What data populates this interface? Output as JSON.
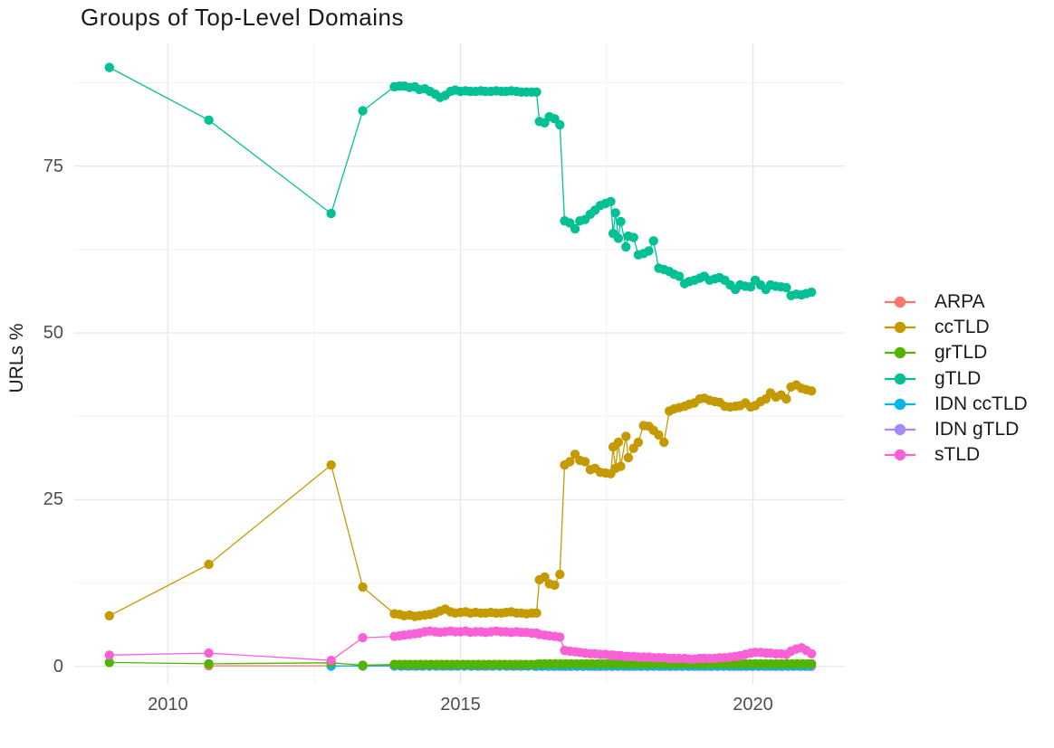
{
  "chart_data": {
    "type": "line",
    "title": "Groups of Top-Level Domains",
    "xlabel": "",
    "ylabel": "URLs %",
    "x_ticks": [
      2010,
      2015,
      2020
    ],
    "x_minor_gridlines": [
      2012.5,
      2017.5
    ],
    "y_ticks": [
      0,
      25,
      50,
      75
    ],
    "y_minor_gridlines": [
      12.5,
      37.5,
      62.5,
      87.5
    ],
    "xlim": [
      2008.4,
      2021.57
    ],
    "ylim": [
      -2.6,
      93.4
    ],
    "grid": true,
    "legend_position": "right",
    "marker": "point",
    "draw_order": [
      "ARPA",
      "IDN gTLD",
      "IDN ccTLD",
      "ccTLD",
      "gTLD",
      "grTLD",
      "sTLD"
    ],
    "series": [
      {
        "name": "ARPA",
        "color": "#F8766D",
        "points": [
          [
            2010.7,
            0.1
          ],
          [
            2012.79,
            0.1
          ],
          [
            2013.33,
            0.05
          ]
        ],
        "flat_runs": [
          {
            "from": 2013.87,
            "to": 2021.0,
            "step": 0.12,
            "value": 0.05
          }
        ]
      },
      {
        "name": "ccTLD",
        "color": "#C49A00",
        "points": [
          [
            2009.0,
            7.6
          ],
          [
            2010.7,
            15.3
          ],
          [
            2012.79,
            30.2
          ],
          [
            2013.33,
            11.9
          ],
          [
            2013.87,
            7.9
          ],
          [
            2013.96,
            7.8
          ],
          [
            2014.04,
            7.6
          ],
          [
            2014.13,
            7.7
          ],
          [
            2014.22,
            7.5
          ],
          [
            2014.3,
            7.6
          ],
          [
            2014.39,
            7.7
          ],
          [
            2014.48,
            7.8
          ],
          [
            2014.57,
            8.0
          ],
          [
            2014.65,
            8.3
          ],
          [
            2014.74,
            8.6
          ],
          [
            2014.83,
            8.2
          ],
          [
            2014.91,
            8.0
          ],
          [
            2015.0,
            8.1
          ],
          [
            2015.09,
            8.2
          ],
          [
            2015.17,
            8.0
          ],
          [
            2015.26,
            8.1
          ],
          [
            2015.35,
            8.0
          ],
          [
            2015.43,
            8.0
          ],
          [
            2015.52,
            8.1
          ],
          [
            2015.61,
            8.0
          ],
          [
            2015.7,
            8.0
          ],
          [
            2015.78,
            8.1
          ],
          [
            2015.87,
            8.2
          ],
          [
            2015.96,
            8.0
          ],
          [
            2016.04,
            8.0
          ],
          [
            2016.13,
            7.9
          ],
          [
            2016.22,
            8.0
          ],
          [
            2016.3,
            8.0
          ],
          [
            2016.35,
            13.0
          ],
          [
            2016.44,
            13.4
          ],
          [
            2016.52,
            12.4
          ],
          [
            2016.61,
            12.2
          ],
          [
            2016.7,
            13.8
          ],
          [
            2016.78,
            30.2
          ],
          [
            2016.87,
            30.7
          ],
          [
            2016.96,
            31.8
          ],
          [
            2017.04,
            30.9
          ],
          [
            2017.13,
            30.7
          ],
          [
            2017.22,
            29.5
          ],
          [
            2017.3,
            29.7
          ],
          [
            2017.39,
            29.1
          ],
          [
            2017.48,
            29.0
          ],
          [
            2017.57,
            28.9
          ],
          [
            2017.61,
            32.9
          ],
          [
            2017.65,
            29.7
          ],
          [
            2017.7,
            33.6
          ],
          [
            2017.74,
            30.0
          ],
          [
            2017.83,
            34.5
          ],
          [
            2017.87,
            31.3
          ],
          [
            2017.96,
            32.7
          ],
          [
            2018.04,
            33.6
          ],
          [
            2018.13,
            36.1
          ],
          [
            2018.22,
            36.0
          ],
          [
            2018.3,
            35.4
          ],
          [
            2018.39,
            34.7
          ],
          [
            2018.48,
            33.6
          ],
          [
            2018.57,
            38.3
          ],
          [
            2018.65,
            38.6
          ],
          [
            2018.74,
            38.8
          ],
          [
            2018.83,
            39.0
          ],
          [
            2018.91,
            39.3
          ],
          [
            2019.0,
            39.5
          ],
          [
            2019.09,
            40.1
          ],
          [
            2019.17,
            40.2
          ],
          [
            2019.26,
            39.9
          ],
          [
            2019.35,
            39.7
          ],
          [
            2019.43,
            39.6
          ],
          [
            2019.52,
            39.0
          ],
          [
            2019.61,
            38.9
          ],
          [
            2019.7,
            39.0
          ],
          [
            2019.78,
            39.1
          ],
          [
            2019.87,
            39.5
          ],
          [
            2019.96,
            38.9
          ],
          [
            2020.04,
            39.1
          ],
          [
            2020.13,
            39.7
          ],
          [
            2020.22,
            40.1
          ],
          [
            2020.3,
            41.0
          ],
          [
            2020.39,
            40.4
          ],
          [
            2020.48,
            40.7
          ],
          [
            2020.57,
            40.1
          ],
          [
            2020.65,
            41.9
          ],
          [
            2020.74,
            42.2
          ],
          [
            2020.83,
            41.7
          ],
          [
            2020.91,
            41.5
          ],
          [
            2021.0,
            41.3
          ]
        ]
      },
      {
        "name": "grTLD",
        "color": "#53B400",
        "points": [
          [
            2009.0,
            0.6
          ],
          [
            2010.7,
            0.4
          ],
          [
            2012.79,
            0.55
          ],
          [
            2013.33,
            0.2
          ]
        ],
        "flat_runs": [
          {
            "from": 2013.87,
            "to": 2016.3,
            "step": 0.09,
            "value": 0.3
          },
          {
            "from": 2016.35,
            "to": 2021.0,
            "step": 0.09,
            "value": 0.4
          }
        ]
      },
      {
        "name": "gTLD",
        "color": "#00C094",
        "points": [
          [
            2009.0,
            89.8
          ],
          [
            2010.7,
            81.9
          ],
          [
            2012.79,
            67.9
          ],
          [
            2013.33,
            83.3
          ],
          [
            2013.87,
            86.9
          ],
          [
            2013.96,
            87.0
          ],
          [
            2014.04,
            87.0
          ],
          [
            2014.13,
            86.8
          ],
          [
            2014.22,
            86.9
          ],
          [
            2014.3,
            86.5
          ],
          [
            2014.39,
            86.6
          ],
          [
            2014.48,
            86.2
          ],
          [
            2014.57,
            85.8
          ],
          [
            2014.65,
            85.3
          ],
          [
            2014.74,
            85.6
          ],
          [
            2014.83,
            86.2
          ],
          [
            2014.91,
            86.4
          ],
          [
            2015.0,
            86.2
          ],
          [
            2015.09,
            86.3
          ],
          [
            2015.17,
            86.2
          ],
          [
            2015.26,
            86.2
          ],
          [
            2015.35,
            86.3
          ],
          [
            2015.43,
            86.2
          ],
          [
            2015.52,
            86.2
          ],
          [
            2015.61,
            86.3
          ],
          [
            2015.7,
            86.2
          ],
          [
            2015.78,
            86.2
          ],
          [
            2015.87,
            86.3
          ],
          [
            2015.96,
            86.2
          ],
          [
            2016.04,
            86.1
          ],
          [
            2016.13,
            86.1
          ],
          [
            2016.22,
            86.1
          ],
          [
            2016.3,
            86.1
          ],
          [
            2016.35,
            81.7
          ],
          [
            2016.44,
            81.5
          ],
          [
            2016.52,
            82.4
          ],
          [
            2016.61,
            82.1
          ],
          [
            2016.7,
            81.2
          ],
          [
            2016.78,
            66.8
          ],
          [
            2016.87,
            66.5
          ],
          [
            2016.96,
            65.6
          ],
          [
            2017.04,
            66.8
          ],
          [
            2017.13,
            67.0
          ],
          [
            2017.22,
            67.8
          ],
          [
            2017.3,
            68.4
          ],
          [
            2017.39,
            69.1
          ],
          [
            2017.48,
            69.4
          ],
          [
            2017.57,
            69.7
          ],
          [
            2017.61,
            64.9
          ],
          [
            2017.65,
            68.0
          ],
          [
            2017.7,
            64.2
          ],
          [
            2017.74,
            66.7
          ],
          [
            2017.83,
            62.9
          ],
          [
            2017.87,
            64.5
          ],
          [
            2017.96,
            64.3
          ],
          [
            2018.04,
            61.7
          ],
          [
            2018.13,
            61.9
          ],
          [
            2018.22,
            62.3
          ],
          [
            2018.3,
            63.8
          ],
          [
            2018.39,
            59.7
          ],
          [
            2018.48,
            59.5
          ],
          [
            2018.57,
            59.2
          ],
          [
            2018.65,
            58.8
          ],
          [
            2018.74,
            58.5
          ],
          [
            2018.83,
            57.4
          ],
          [
            2018.91,
            57.7
          ],
          [
            2019.0,
            57.9
          ],
          [
            2019.09,
            58.2
          ],
          [
            2019.17,
            58.5
          ],
          [
            2019.26,
            57.9
          ],
          [
            2019.35,
            58.1
          ],
          [
            2019.43,
            58.3
          ],
          [
            2019.52,
            57.9
          ],
          [
            2019.61,
            57.2
          ],
          [
            2019.7,
            56.5
          ],
          [
            2019.78,
            57.2
          ],
          [
            2019.87,
            57.0
          ],
          [
            2019.96,
            56.9
          ],
          [
            2020.04,
            57.9
          ],
          [
            2020.13,
            57.2
          ],
          [
            2020.22,
            56.5
          ],
          [
            2020.3,
            57.2
          ],
          [
            2020.39,
            57.0
          ],
          [
            2020.48,
            56.9
          ],
          [
            2020.57,
            56.8
          ],
          [
            2020.65,
            55.6
          ],
          [
            2020.74,
            55.8
          ],
          [
            2020.83,
            55.7
          ],
          [
            2020.91,
            55.9
          ],
          [
            2021.0,
            56.1
          ]
        ]
      },
      {
        "name": "IDN ccTLD",
        "color": "#00B6EB",
        "points": [
          [
            2012.79,
            0.05
          ],
          [
            2013.33,
            0.1
          ]
        ],
        "flat_runs": [
          {
            "from": 2013.87,
            "to": 2021.0,
            "step": 0.1,
            "value": 0.1
          }
        ]
      },
      {
        "name": "IDN gTLD",
        "color": "#A58AFF",
        "points": [],
        "flat_runs": [
          {
            "from": 2016.3,
            "to": 2021.0,
            "step": 0.1,
            "value": 0.0
          }
        ]
      },
      {
        "name": "sTLD",
        "color": "#FB61D7",
        "points": [
          [
            2009.0,
            1.7
          ],
          [
            2010.7,
            2.0
          ],
          [
            2012.79,
            0.9
          ],
          [
            2013.33,
            4.3
          ],
          [
            2013.87,
            4.5
          ],
          [
            2013.96,
            4.6
          ],
          [
            2014.04,
            4.7
          ],
          [
            2014.13,
            4.8
          ],
          [
            2014.22,
            4.9
          ],
          [
            2014.3,
            5.0
          ],
          [
            2014.39,
            5.2
          ],
          [
            2014.48,
            5.3
          ],
          [
            2014.57,
            5.2
          ],
          [
            2014.65,
            5.1
          ],
          [
            2014.74,
            5.2
          ],
          [
            2014.83,
            5.3
          ],
          [
            2014.91,
            5.2
          ],
          [
            2015.0,
            5.2
          ],
          [
            2015.09,
            5.3
          ],
          [
            2015.17,
            5.1
          ],
          [
            2015.26,
            5.2
          ],
          [
            2015.35,
            5.2
          ],
          [
            2015.43,
            5.1
          ],
          [
            2015.52,
            5.2
          ],
          [
            2015.61,
            5.3
          ],
          [
            2015.7,
            5.2
          ],
          [
            2015.78,
            5.2
          ],
          [
            2015.87,
            5.1
          ],
          [
            2015.96,
            5.2
          ],
          [
            2016.04,
            5.1
          ],
          [
            2016.13,
            5.1
          ],
          [
            2016.22,
            5.0
          ],
          [
            2016.3,
            5.0
          ],
          [
            2016.35,
            4.8
          ],
          [
            2016.44,
            4.7
          ],
          [
            2016.52,
            4.6
          ],
          [
            2016.61,
            4.5
          ],
          [
            2016.7,
            4.4
          ],
          [
            2016.78,
            2.4
          ],
          [
            2016.87,
            2.3
          ],
          [
            2016.96,
            2.2
          ],
          [
            2017.04,
            2.1
          ],
          [
            2017.13,
            2.0
          ],
          [
            2017.22,
            1.9
          ],
          [
            2017.3,
            1.9
          ],
          [
            2017.39,
            1.8
          ],
          [
            2017.48,
            1.8
          ],
          [
            2017.57,
            1.7
          ],
          [
            2017.61,
            1.7
          ],
          [
            2017.65,
            1.6
          ],
          [
            2017.7,
            1.6
          ],
          [
            2017.74,
            1.6
          ],
          [
            2017.83,
            1.5
          ],
          [
            2017.87,
            1.5
          ],
          [
            2017.96,
            1.5
          ],
          [
            2018.04,
            1.4
          ],
          [
            2018.13,
            1.4
          ],
          [
            2018.22,
            1.4
          ],
          [
            2018.3,
            1.3
          ],
          [
            2018.39,
            1.3
          ],
          [
            2018.48,
            1.3
          ],
          [
            2018.57,
            1.2
          ],
          [
            2018.65,
            1.2
          ],
          [
            2018.74,
            1.2
          ],
          [
            2018.83,
            1.2
          ],
          [
            2018.91,
            1.1
          ],
          [
            2019.0,
            1.1
          ],
          [
            2019.09,
            1.2
          ],
          [
            2019.17,
            1.2
          ],
          [
            2019.26,
            1.2
          ],
          [
            2019.35,
            1.2
          ],
          [
            2019.43,
            1.3
          ],
          [
            2019.52,
            1.3
          ],
          [
            2019.61,
            1.4
          ],
          [
            2019.7,
            1.5
          ],
          [
            2019.78,
            1.6
          ],
          [
            2019.87,
            1.8
          ],
          [
            2019.96,
            2.0
          ],
          [
            2020.04,
            2.1
          ],
          [
            2020.13,
            2.1
          ],
          [
            2020.22,
            2.0
          ],
          [
            2020.3,
            2.0
          ],
          [
            2020.39,
            1.9
          ],
          [
            2020.48,
            1.9
          ],
          [
            2020.57,
            1.8
          ],
          [
            2020.65,
            2.3
          ],
          [
            2020.74,
            2.6
          ],
          [
            2020.83,
            2.8
          ],
          [
            2020.91,
            2.4
          ],
          [
            2021.0,
            1.9
          ]
        ]
      }
    ]
  }
}
